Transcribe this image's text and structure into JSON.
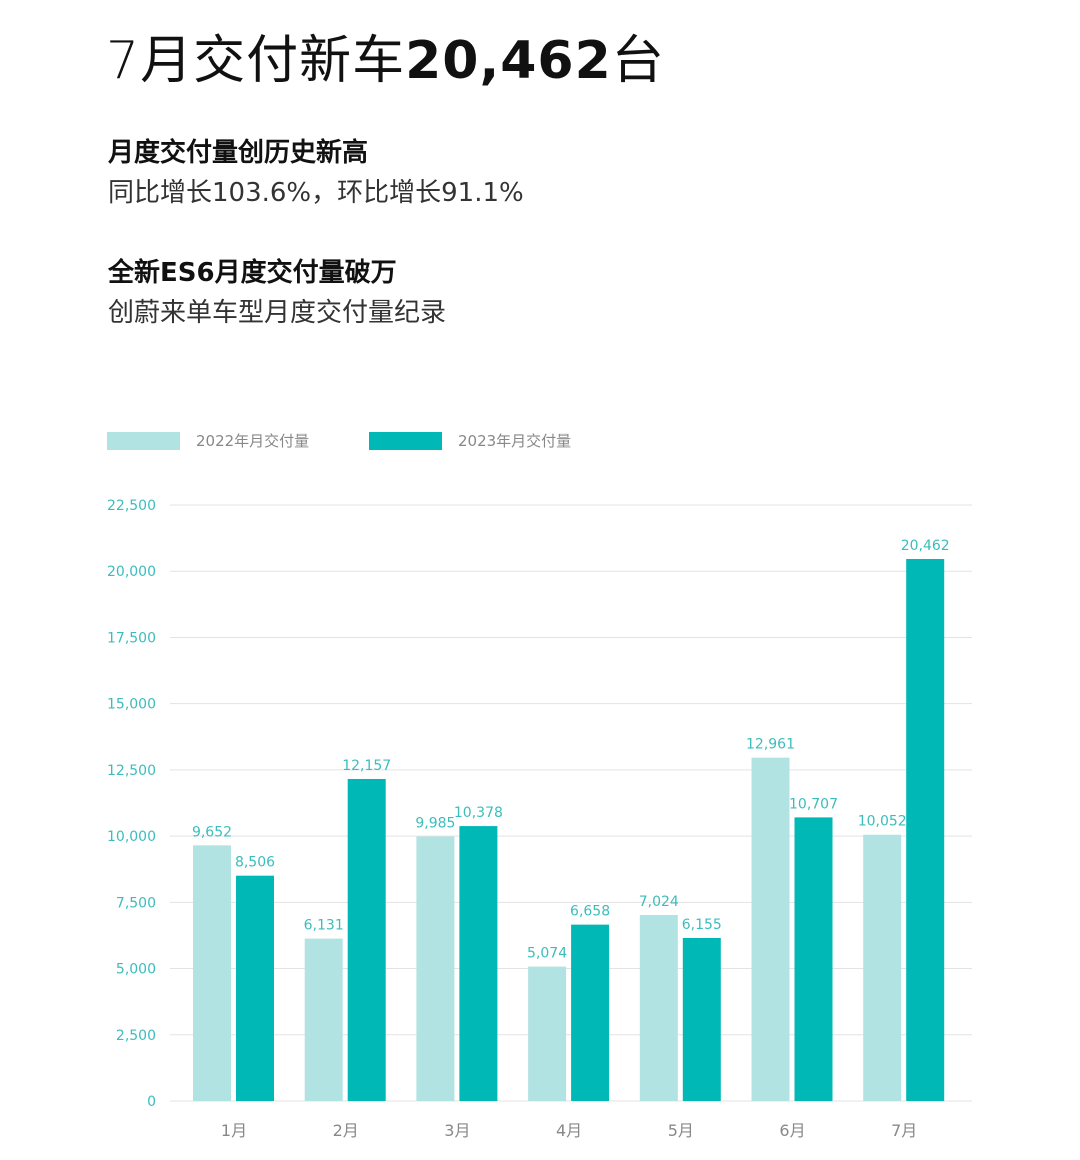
{
  "header": {
    "title_prefix": "7月交付新车",
    "title_number": "20,462",
    "title_suffix": "台",
    "headline1": "月度交付量创历史新高",
    "sub1": "同比增长103.6%，环比增长91.1%",
    "headline2": "全新ES6月度交付量破万",
    "sub2": "创蔚来单车型月度交付量纪录"
  },
  "colors": {
    "series_2022": "#b2e3e3",
    "series_2023": "#00b8b6",
    "label": "#3cbdbd",
    "grid": "#e3e3e3"
  },
  "chart_data": {
    "type": "bar",
    "categories": [
      "1月",
      "2月",
      "3月",
      "4月",
      "5月",
      "6月",
      "7月"
    ],
    "series": [
      {
        "name": "2022年月交付量",
        "values": [
          9652,
          6131,
          9985,
          5074,
          7024,
          12961,
          10052
        ],
        "labels": [
          "9,652",
          "6,131",
          "9,985",
          "5,074",
          "7,024",
          "12,961",
          "10,052"
        ]
      },
      {
        "name": "2023年月交付量",
        "values": [
          8506,
          12157,
          10378,
          6658,
          6155,
          10707,
          20462
        ],
        "labels": [
          "8,506",
          "12,157",
          "10,378",
          "6,658",
          "6,155",
          "10,707",
          "20,462"
        ]
      }
    ],
    "yticks": [
      0,
      2500,
      5000,
      7500,
      10000,
      12500,
      15000,
      17500,
      20000,
      22500
    ],
    "ytick_labels": [
      "0",
      "2,500",
      "5,000",
      "7,500",
      "10,000",
      "12,500",
      "15,000",
      "17,500",
      "20,000",
      "22,500"
    ],
    "ylim": [
      0,
      22500
    ],
    "grid": true,
    "legend": "top-left"
  }
}
